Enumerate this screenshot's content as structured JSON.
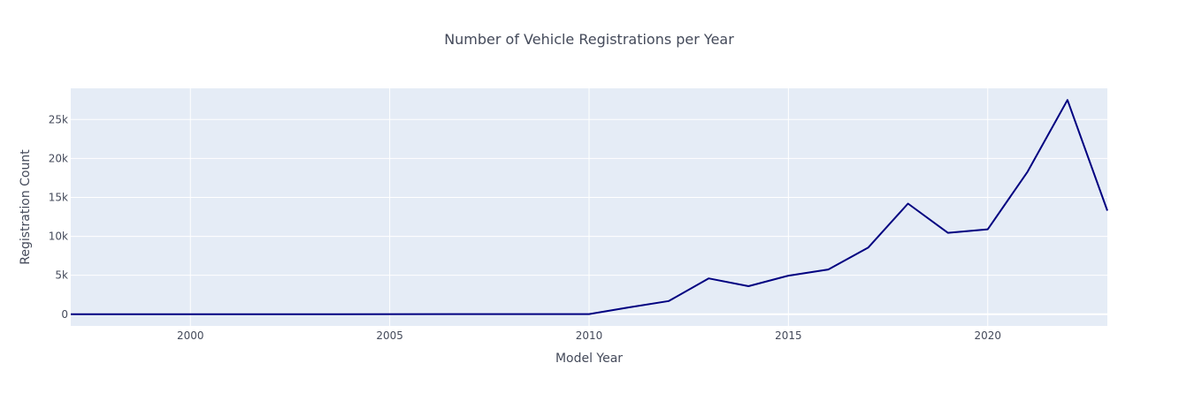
{
  "chart_data": {
    "type": "line",
    "title": "Number of Vehicle Registrations per Year",
    "xlabel": "Model Year",
    "ylabel": "Registration Count",
    "xlim": [
      1997,
      2023
    ],
    "ylim": [
      -1500,
      29000
    ],
    "x_ticks": [
      2000,
      2005,
      2010,
      2015,
      2020
    ],
    "x_tick_labels": [
      "2000",
      "2005",
      "2010",
      "2015",
      "2020"
    ],
    "y_ticks": [
      0,
      5000,
      10000,
      15000,
      20000,
      25000
    ],
    "y_tick_labels": [
      "0",
      "5k",
      "10k",
      "15k",
      "20k",
      "25k"
    ],
    "grid": true,
    "legend": "none",
    "colors": {
      "line": "#000080",
      "plot_bg": "#e5ecf6",
      "grid": "#ffffff",
      "text": "#444a5a"
    },
    "series": [
      {
        "x": [
          1997,
          1998,
          1999,
          2000,
          2002,
          2003,
          2008,
          2010,
          2011,
          2012,
          2013,
          2014,
          2015,
          2016,
          2017,
          2018,
          2019,
          2020,
          2021,
          2022,
          2023
        ],
        "y": [
          1,
          1,
          3,
          6,
          2,
          1,
          20,
          24,
          880,
          1700,
          4600,
          3600,
          4950,
          5750,
          8550,
          14200,
          10450,
          10900,
          18300,
          27500,
          13300
        ]
      }
    ]
  }
}
